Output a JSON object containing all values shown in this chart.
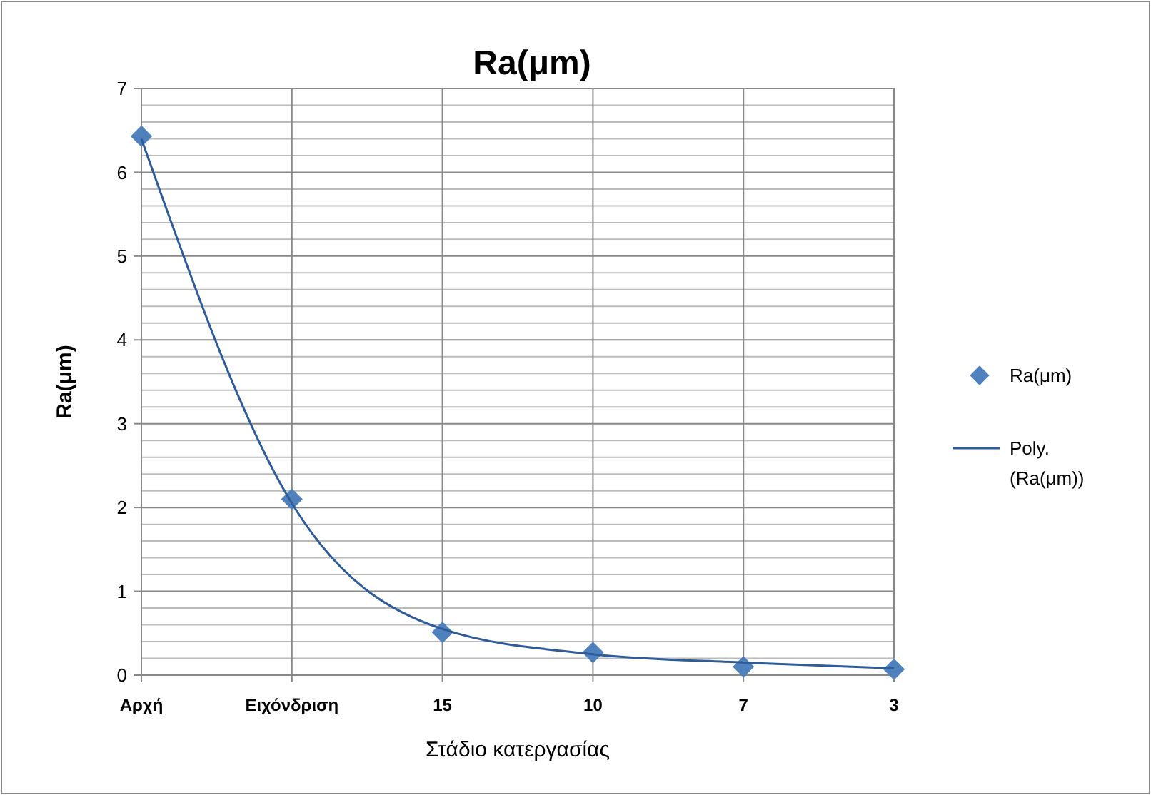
{
  "chart_data": {
    "type": "scatter",
    "title": "Ra(μm)",
    "xlabel": "Στάδιο κατεργασίας",
    "ylabel": "Ra(μm)",
    "categories": [
      "Αρχή",
      "Ειχόνδριση",
      "15",
      "10",
      "7",
      "3"
    ],
    "series": [
      {
        "name": "Ra(μm)",
        "marker": "diamond",
        "color": "#4f81bd",
        "values": [
          6.43,
          2.1,
          0.51,
          0.27,
          0.1,
          0.07
        ]
      },
      {
        "name": "Poly. (Ra(μm))",
        "type": "line",
        "marker": "none",
        "line_style": "solid",
        "color": "#2e5b9a",
        "values": [
          6.4,
          2.05,
          0.55,
          0.25,
          0.15,
          0.08
        ]
      }
    ],
    "ylim": [
      0,
      7
    ],
    "yticks": [
      0,
      {
        "value": 0.2,
        "label": null
      },
      {
        "value": 0.4,
        "label": null
      },
      {
        "value": 0.6,
        "label": null
      },
      {
        "value": 0.8,
        "label": null
      },
      1,
      {
        "value": 1.2,
        "label": null
      },
      {
        "value": 1.4,
        "label": null
      },
      {
        "value": 1.6,
        "label": null
      },
      {
        "value": 1.8,
        "label": null
      },
      2,
      {
        "value": 2.2,
        "label": null
      },
      {
        "value": 2.4,
        "label": null
      },
      {
        "value": 2.6,
        "label": null
      },
      {
        "value": 2.8,
        "label": null
      },
      3,
      {
        "value": 3.2,
        "label": null
      },
      {
        "value": 3.4,
        "label": null
      },
      {
        "value": 3.6,
        "label": null
      },
      {
        "value": 3.8,
        "label": null
      },
      4,
      {
        "value": 4.2,
        "label": null
      },
      {
        "value": 4.4,
        "label": null
      },
      {
        "value": 4.6,
        "label": null
      },
      {
        "value": 4.8,
        "label": null
      },
      5,
      {
        "value": 5.2,
        "label": null
      },
      {
        "value": 5.4,
        "label": null
      },
      {
        "value": 5.6,
        "label": null
      },
      {
        "value": 5.8,
        "label": null
      },
      6,
      {
        "value": 6.2,
        "label": null
      },
      {
        "value": 6.4,
        "label": null
      },
      {
        "value": 6.6,
        "label": null
      },
      {
        "value": 6.8,
        "label": null
      },
      7
    ],
    "grid": true,
    "legend": "right"
  }
}
